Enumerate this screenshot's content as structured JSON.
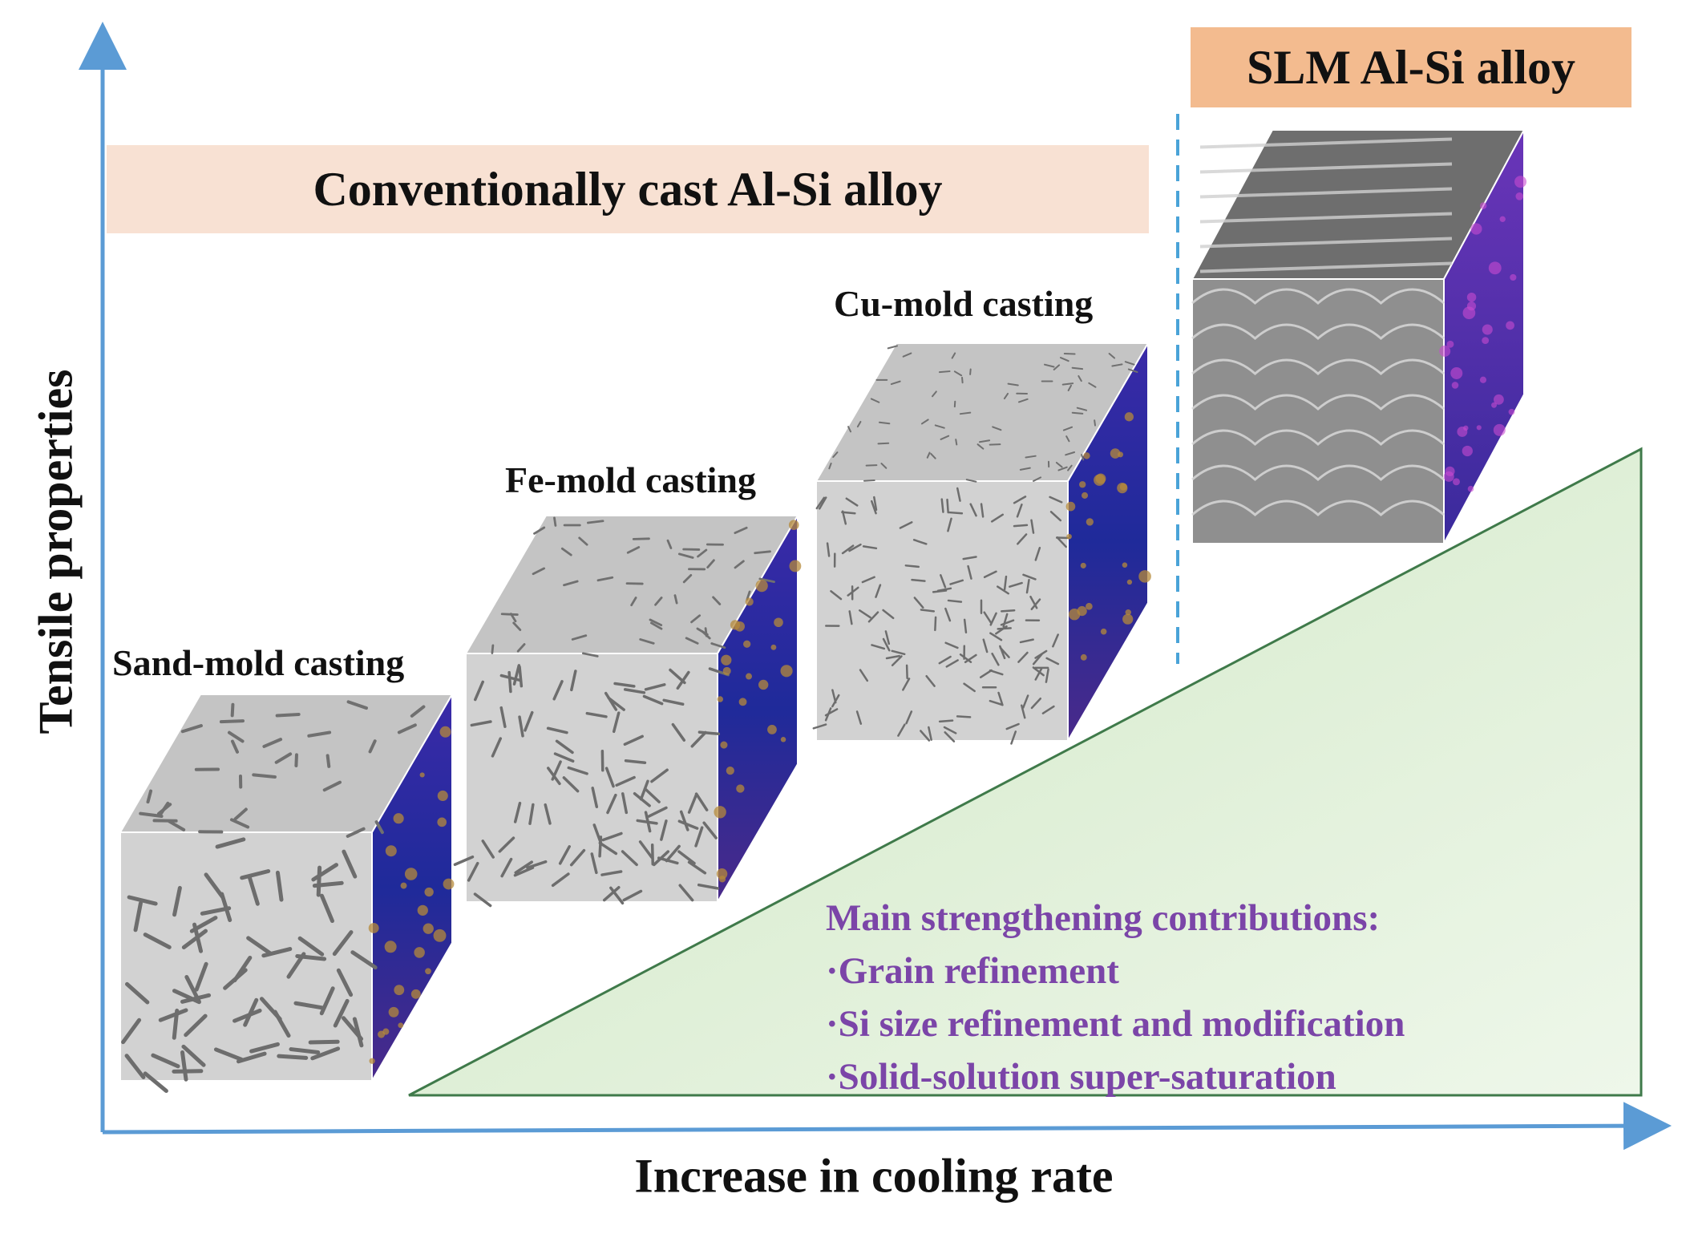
{
  "axes": {
    "y_label": "Tensile properties",
    "x_label": "Increase in cooling rate",
    "color": "#5b9bd5"
  },
  "banners": {
    "conventional": "Conventionally cast Al-Si alloy",
    "slm": "SLM Al-Si alloy"
  },
  "cubes": [
    {
      "label": "Sand-mold casting",
      "texture": "coarse-si-needles"
    },
    {
      "label": "Fe-mold casting",
      "texture": "medium-si-needles"
    },
    {
      "label": "Cu-mold casting",
      "texture": "fine-si-needles"
    },
    {
      "label": "",
      "texture": "slm-melt-pools"
    }
  ],
  "contributions": {
    "title": "Main strengthening contributions:",
    "items": [
      "·Grain refinement",
      "·Si size refinement and modification",
      "·Solid-solution super-saturation"
    ]
  },
  "colors": {
    "triangle_fill": "#dcefd3",
    "triangle_edge": "#3f7a4a",
    "text_purple": "#7b45a8",
    "side_face_blue": "#2b2f9a",
    "side_face_gold": "#b58a3a"
  }
}
